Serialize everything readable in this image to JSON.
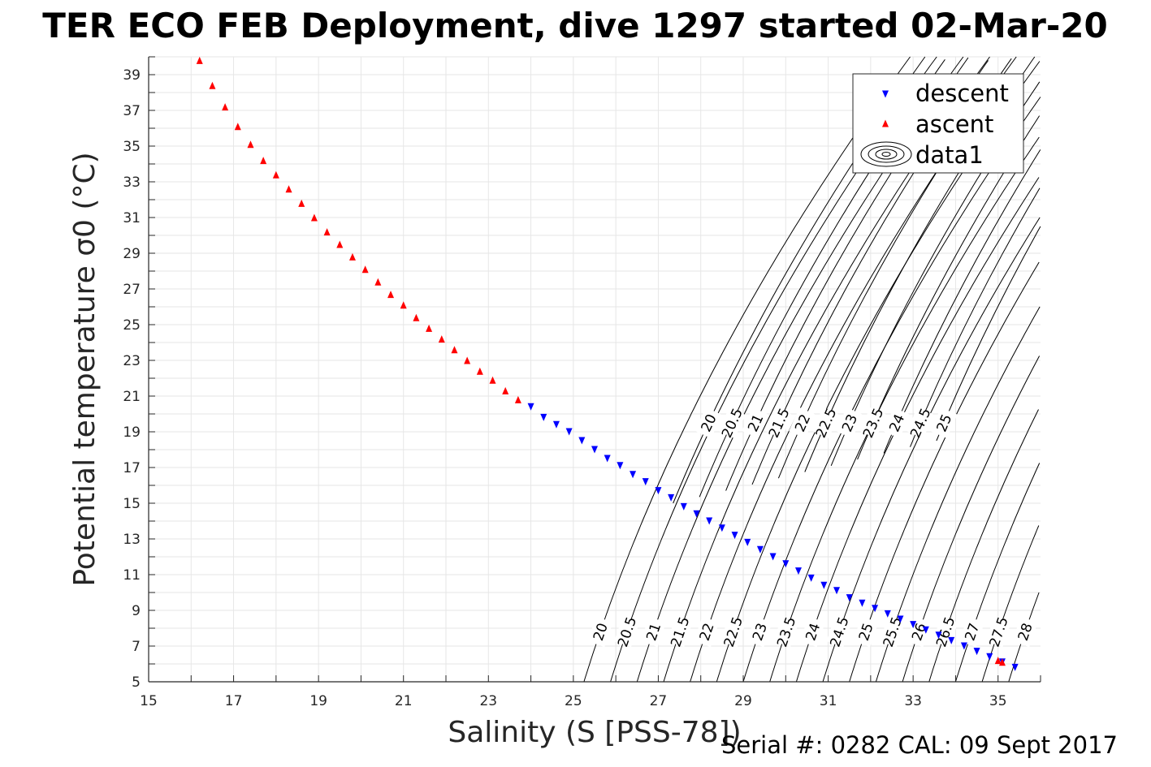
{
  "title": "TER ECO FEB Deployment, dive 1297 started 02-Mar-20",
  "serial_text": "Serial #: 0282  CAL: 09 Sept 2017",
  "colors": {
    "descent": "#0000ff",
    "ascent": "#ff0000",
    "contour": "#000000",
    "grid": "#e6e6e6",
    "axis": "#262626"
  },
  "chart_data": {
    "type": "scatter",
    "xlabel": "Salinity (S [PSS-78])",
    "ylabel": "Potential temperature σ0 (°C)",
    "xlim": [
      15,
      36
    ],
    "ylim": [
      5,
      40
    ],
    "xticks": [
      "15",
      "17",
      "19",
      "21",
      "23",
      "25",
      "27",
      "29",
      "31",
      "33",
      "35"
    ],
    "yticks": [
      "5",
      "7",
      "9",
      "11",
      "13",
      "15",
      "17",
      "19",
      "21",
      "23",
      "25",
      "27",
      "29",
      "31",
      "33",
      "35",
      "37",
      "39"
    ],
    "grid": true,
    "legend_position": "top-right",
    "series": [
      {
        "name": "descent",
        "marker": "triangle-down",
        "x": [
          24.0,
          24.3,
          24.6,
          24.9,
          25.2,
          25.5,
          25.8,
          26.1,
          26.4,
          26.7,
          27.0,
          27.3,
          27.6,
          27.9,
          28.2,
          28.5,
          28.8,
          29.1,
          29.4,
          29.7,
          30.0,
          30.3,
          30.6,
          30.9,
          31.2,
          31.5,
          31.8,
          32.1,
          32.4,
          32.7,
          33.0,
          33.3,
          33.6,
          33.9,
          34.2,
          34.5,
          34.8,
          35.1,
          35.4
        ],
        "y": [
          20.4,
          19.8,
          19.4,
          19.0,
          18.5,
          18.0,
          17.5,
          17.1,
          16.6,
          16.2,
          15.7,
          15.3,
          14.8,
          14.4,
          14.0,
          13.6,
          13.2,
          12.8,
          12.4,
          12.0,
          11.6,
          11.2,
          10.8,
          10.4,
          10.1,
          9.7,
          9.4,
          9.1,
          8.8,
          8.5,
          8.2,
          7.9,
          7.6,
          7.3,
          7.0,
          6.7,
          6.4,
          6.1,
          5.8
        ]
      },
      {
        "name": "ascent",
        "marker": "triangle-up",
        "x": [
          16.2,
          16.5,
          16.8,
          17.1,
          17.4,
          17.7,
          18.0,
          18.3,
          18.6,
          18.9,
          19.2,
          19.5,
          19.8,
          20.1,
          20.4,
          20.7,
          21.0,
          21.3,
          21.6,
          21.9,
          22.2,
          22.5,
          22.8,
          23.1,
          23.4,
          23.7,
          35.0,
          35.1
        ],
        "y": [
          39.8,
          38.4,
          37.2,
          36.1,
          35.1,
          34.2,
          33.4,
          32.6,
          31.8,
          31.0,
          30.2,
          29.5,
          28.8,
          28.1,
          27.4,
          26.7,
          26.1,
          25.4,
          24.8,
          24.2,
          23.6,
          23.0,
          22.4,
          21.9,
          21.3,
          20.8,
          6.2,
          6.1
        ]
      }
    ],
    "contours": {
      "name": "data1",
      "upper_levels": [
        "20",
        "20.5",
        "21",
        "21.5",
        "22",
        "22.5",
        "23",
        "23.5",
        "24",
        "24.5",
        "25"
      ],
      "lower_levels": [
        "20",
        "20.5",
        "21",
        "21.5",
        "22",
        "22.5",
        "23",
        "23.5",
        "24",
        "24.5",
        "25",
        "25.5",
        "26",
        "26.5",
        "27",
        "27.5",
        "28"
      ]
    }
  }
}
